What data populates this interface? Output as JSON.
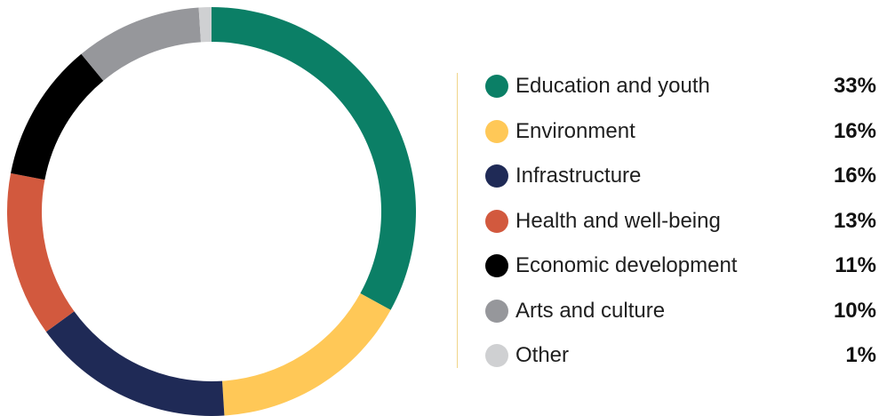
{
  "chart_data": {
    "type": "pie",
    "variant": "donut",
    "categories": [
      "Education and youth",
      "Environment",
      "Infrastructure",
      "Health and well-being",
      "Economic development",
      "Arts and culture",
      "Other"
    ],
    "values": [
      33,
      16,
      16,
      13,
      11,
      10,
      1
    ],
    "value_labels": [
      "33%",
      "16%",
      "16%",
      "13%",
      "11%",
      "10%",
      "1%"
    ],
    "colors": [
      "#0b7f66",
      "#ffc857",
      "#1f2a56",
      "#d2593e",
      "#000000",
      "#96979b",
      "#cfd0d2"
    ],
    "title": "",
    "legend_position": "right"
  }
}
